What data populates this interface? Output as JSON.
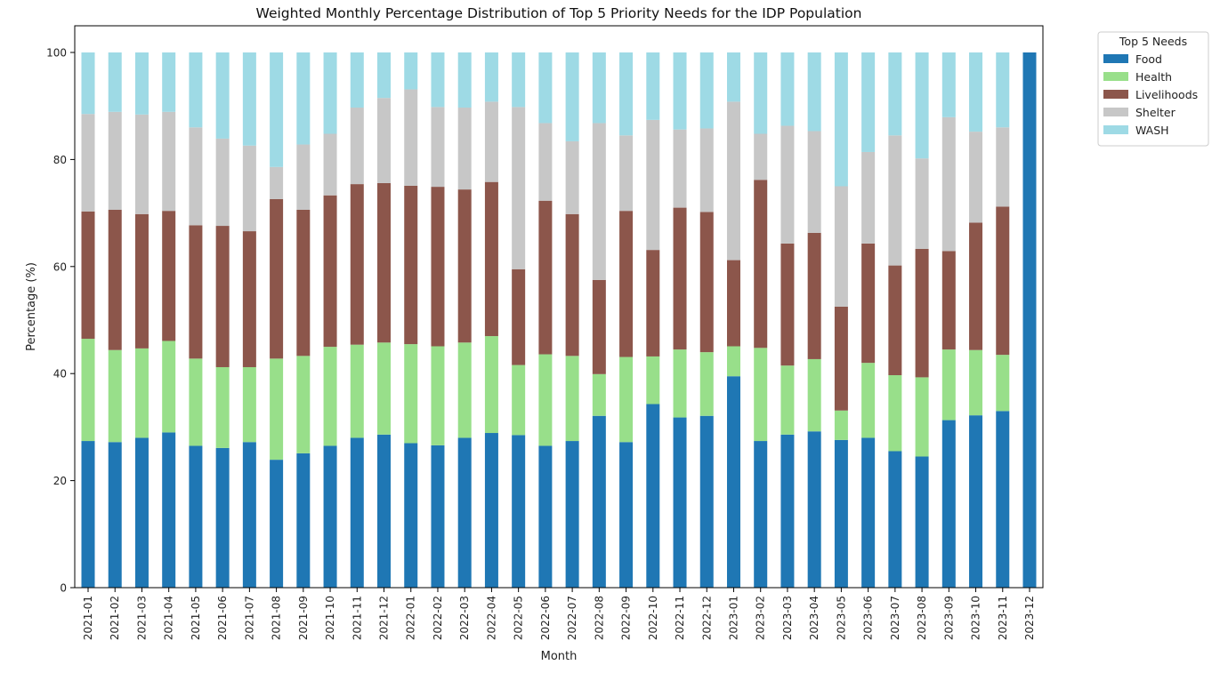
{
  "chart_data": {
    "type": "bar",
    "stacked": true,
    "title": "Weighted Monthly Percentage Distribution of Top 5 Priority Needs for the IDP Population",
    "xlabel": "Month",
    "ylabel": "Percentage (%)",
    "ylim": [
      0,
      100
    ],
    "yticks": [
      0,
      20,
      40,
      60,
      80,
      100
    ],
    "grid": false,
    "legend": {
      "title": "Top 5 Needs",
      "placement": "outside-top-right"
    },
    "categories": [
      "2021-01",
      "2021-02",
      "2021-03",
      "2021-04",
      "2021-05",
      "2021-06",
      "2021-07",
      "2021-08",
      "2021-09",
      "2021-10",
      "2021-11",
      "2021-12",
      "2022-01",
      "2022-02",
      "2022-03",
      "2022-04",
      "2022-05",
      "2022-06",
      "2022-07",
      "2022-08",
      "2022-09",
      "2022-10",
      "2022-11",
      "2022-12",
      "2023-01",
      "2023-02",
      "2023-03",
      "2023-04",
      "2023-05",
      "2023-06",
      "2023-07",
      "2023-08",
      "2023-09",
      "2023-10",
      "2023-11",
      "2023-12"
    ],
    "series": [
      {
        "name": "Food",
        "color": "#1f77b4",
        "values": [
          27.4,
          27.2,
          28.0,
          29.0,
          26.5,
          26.1,
          27.2,
          23.9,
          25.1,
          26.5,
          28.0,
          28.6,
          27.0,
          26.6,
          28.0,
          28.9,
          28.5,
          26.5,
          27.4,
          32.1,
          27.2,
          34.3,
          31.8,
          32.1,
          39.5,
          27.4,
          28.6,
          29.2,
          27.6,
          28.0,
          25.5,
          24.5,
          31.3,
          32.2,
          33.0,
          null
        ]
      },
      {
        "name": "Health",
        "color": "#98df8a",
        "values": [
          19.1,
          17.2,
          16.7,
          17.1,
          16.3,
          15.1,
          14.0,
          18.9,
          18.2,
          18.5,
          17.4,
          17.2,
          18.5,
          18.5,
          17.8,
          18.1,
          13.1,
          17.1,
          15.9,
          7.8,
          15.9,
          8.9,
          12.7,
          11.9,
          5.6,
          17.4,
          12.9,
          13.5,
          5.5,
          14.0,
          14.2,
          14.8,
          13.2,
          12.2,
          10.5,
          null
        ]
      },
      {
        "name": "Livelihoods",
        "color": "#8c564b",
        "values": [
          23.8,
          26.2,
          25.1,
          24.3,
          24.9,
          26.4,
          25.4,
          29.8,
          27.3,
          28.3,
          30.0,
          29.8,
          29.6,
          29.8,
          28.6,
          28.8,
          17.9,
          28.7,
          26.5,
          17.6,
          27.3,
          19.9,
          26.5,
          26.2,
          16.1,
          31.4,
          22.8,
          23.6,
          19.4,
          22.3,
          20.5,
          24.0,
          18.4,
          23.8,
          27.7,
          null
        ]
      },
      {
        "name": "Shelter",
        "color": "#c7c7c7",
        "values": [
          18.2,
          18.3,
          18.6,
          18.5,
          18.3,
          16.3,
          16.0,
          6.0,
          12.2,
          11.5,
          14.3,
          15.9,
          18.0,
          14.9,
          15.3,
          15.0,
          30.3,
          14.5,
          13.6,
          29.3,
          14.1,
          24.3,
          14.6,
          15.6,
          29.6,
          8.6,
          22.0,
          19.0,
          22.5,
          17.1,
          24.3,
          16.9,
          25.0,
          17.0,
          14.8,
          null
        ]
      },
      {
        "name": "WASH",
        "color": "#9edae5",
        "values": [
          11.5,
          11.1,
          11.6,
          11.1,
          14.0,
          16.1,
          17.4,
          21.4,
          17.2,
          15.2,
          10.3,
          8.5,
          6.9,
          10.2,
          10.3,
          9.2,
          10.2,
          13.2,
          16.6,
          13.2,
          15.5,
          12.6,
          14.4,
          14.2,
          9.2,
          15.2,
          13.7,
          14.7,
          25.0,
          18.6,
          15.5,
          19.8,
          12.1,
          14.8,
          14.0,
          null
        ]
      }
    ]
  }
}
